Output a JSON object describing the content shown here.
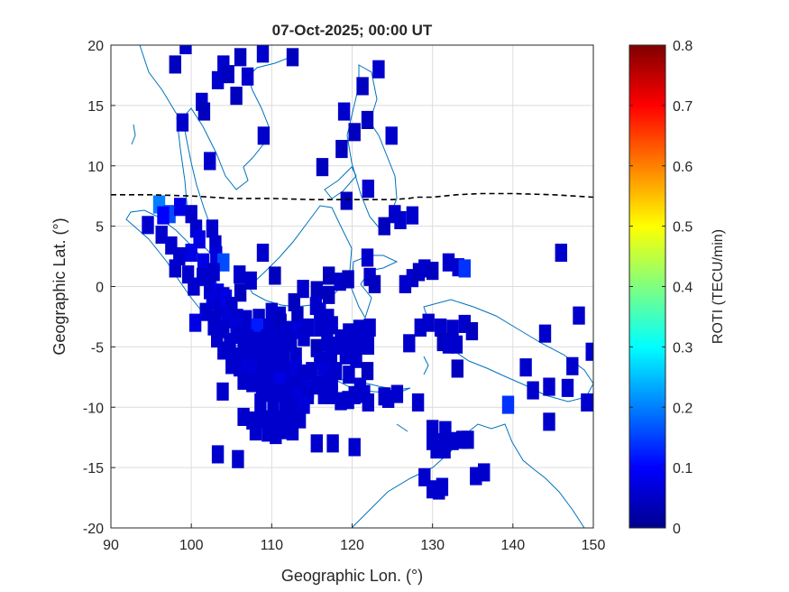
{
  "chart_data": {
    "type": "heatmap",
    "title": "07-Oct-2025; 00:00 UT",
    "xlabel": "Geographic Lon. (°)",
    "ylabel": "Geographic Lat. (°)",
    "xlim": [
      90,
      150
    ],
    "ylim": [
      -20,
      20
    ],
    "xticks": [
      "90",
      "100",
      "110",
      "120",
      "130",
      "140",
      "150"
    ],
    "yticks": [
      "20",
      "15",
      "10",
      "5",
      "0",
      "-5",
      "-10",
      "-15",
      "-20"
    ],
    "grid": true,
    "colorbar": {
      "label": "ROTI (TECU/min)",
      "range": [
        0,
        0.8
      ],
      "ticks": [
        "0.8",
        "0.7",
        "0.6",
        "0.5",
        "0.4",
        "0.3",
        "0.2",
        "0.1",
        "0"
      ],
      "colormap": "jet",
      "placement": "right"
    },
    "cell_size_deg": [
      1.5,
      1.5
    ],
    "cells": [
      [
        99.3,
        20.0,
        0.06
      ],
      [
        98.0,
        18.4,
        0.05
      ],
      [
        104.0,
        18.4,
        0.06
      ],
      [
        106.1,
        19.0,
        0.05
      ],
      [
        108.9,
        19.3,
        0.06
      ],
      [
        112.6,
        19.0,
        0.05
      ],
      [
        103.3,
        17.1,
        0.06
      ],
      [
        104.6,
        17.6,
        0.05
      ],
      [
        107.0,
        17.4,
        0.06
      ],
      [
        123.3,
        18.0,
        0.06
      ],
      [
        121.3,
        16.6,
        0.05
      ],
      [
        101.3,
        15.3,
        0.06
      ],
      [
        101.6,
        14.5,
        0.05
      ],
      [
        105.6,
        15.8,
        0.05
      ],
      [
        119.0,
        14.5,
        0.06
      ],
      [
        98.9,
        13.6,
        0.06
      ],
      [
        121.9,
        13.8,
        0.05
      ],
      [
        109.0,
        12.5,
        0.06
      ],
      [
        120.3,
        12.8,
        0.05
      ],
      [
        124.9,
        12.5,
        0.06
      ],
      [
        118.7,
        11.4,
        0.05
      ],
      [
        102.3,
        10.4,
        0.06
      ],
      [
        116.3,
        9.9,
        0.05
      ],
      [
        122.0,
        8.1,
        0.06
      ],
      [
        119.3,
        7.1,
        0.05
      ],
      [
        96.0,
        6.8,
        0.2
      ],
      [
        97.3,
        6.0,
        0.16
      ],
      [
        98.6,
        6.6,
        0.08
      ],
      [
        96.5,
        5.9,
        0.1
      ],
      [
        94.6,
        5.1,
        0.06
      ],
      [
        100.0,
        6.0,
        0.06
      ],
      [
        125.3,
        6.0,
        0.06
      ],
      [
        124.0,
        5.0,
        0.05
      ],
      [
        126.0,
        5.5,
        0.06
      ],
      [
        127.5,
        5.9,
        0.06
      ],
      [
        100.6,
        4.8,
        0.06
      ],
      [
        101.0,
        3.9,
        0.08
      ],
      [
        102.6,
        4.8,
        0.06
      ],
      [
        103.0,
        3.5,
        0.06
      ],
      [
        96.3,
        4.3,
        0.06
      ],
      [
        97.5,
        3.4,
        0.06
      ],
      [
        98.5,
        2.5,
        0.06
      ],
      [
        100.0,
        2.8,
        0.08
      ],
      [
        101.5,
        2.0,
        0.08
      ],
      [
        103.1,
        2.6,
        0.07
      ],
      [
        104.0,
        2.0,
        0.16
      ],
      [
        108.9,
        2.8,
        0.06
      ],
      [
        121.9,
        2.4,
        0.06
      ],
      [
        146.0,
        2.8,
        0.06
      ],
      [
        98.0,
        1.5,
        0.06
      ],
      [
        99.6,
        1.0,
        0.06
      ],
      [
        101.4,
        0.8,
        0.06
      ],
      [
        102.8,
        1.2,
        0.06
      ],
      [
        106.0,
        1.0,
        0.06
      ],
      [
        107.4,
        0.5,
        0.06
      ],
      [
        110.4,
        0.9,
        0.05
      ],
      [
        117.1,
        0.9,
        0.05
      ],
      [
        118.5,
        0.4,
        0.06
      ],
      [
        119.5,
        0.6,
        0.05
      ],
      [
        122.2,
        0.8,
        0.06
      ],
      [
        122.8,
        0.2,
        0.05
      ],
      [
        126.6,
        0.2,
        0.06
      ],
      [
        127.5,
        0.7,
        0.06
      ],
      [
        128.3,
        1.2,
        0.05
      ],
      [
        129.0,
        1.5,
        0.06
      ],
      [
        130.0,
        1.3,
        0.05
      ],
      [
        132.0,
        2.0,
        0.06
      ],
      [
        133.2,
        1.6,
        0.06
      ],
      [
        134.0,
        1.5,
        0.14
      ],
      [
        100.3,
        0.0,
        0.06
      ],
      [
        102.3,
        -0.3,
        0.06
      ],
      [
        103.3,
        -0.5,
        0.08
      ],
      [
        104.0,
        -0.8,
        0.06
      ],
      [
        106.1,
        -0.5,
        0.05
      ],
      [
        113.9,
        -0.2,
        0.06
      ],
      [
        115.6,
        -0.3,
        0.05
      ],
      [
        117.1,
        -0.7,
        0.05
      ],
      [
        102.6,
        -1.2,
        0.07
      ],
      [
        103.6,
        -1.8,
        0.06
      ],
      [
        104.3,
        -1.0,
        0.08
      ],
      [
        105.0,
        -1.6,
        0.06
      ],
      [
        112.8,
        -1.3,
        0.05
      ],
      [
        115.5,
        -1.6,
        0.06
      ],
      [
        101.8,
        -2.1,
        0.06
      ],
      [
        103.0,
        -2.7,
        0.06
      ],
      [
        104.5,
        -2.7,
        0.07
      ],
      [
        105.7,
        -2.6,
        0.06
      ],
      [
        106.8,
        -2.7,
        0.06
      ],
      [
        108.4,
        -2.6,
        0.06
      ],
      [
        110.0,
        -2.1,
        0.06
      ],
      [
        111.0,
        -2.4,
        0.06
      ],
      [
        113.2,
        -2.4,
        0.05
      ],
      [
        116.0,
        -2.1,
        0.06
      ],
      [
        117.0,
        -2.6,
        0.06
      ],
      [
        100.5,
        -3.0,
        0.08
      ],
      [
        102.8,
        -3.3,
        0.06
      ],
      [
        104.0,
        -3.5,
        0.06
      ],
      [
        105.6,
        -3.2,
        0.07
      ],
      [
        107.3,
        -3.6,
        0.06
      ],
      [
        108.2,
        -3.4,
        0.12
      ],
      [
        109.7,
        -3.4,
        0.06
      ],
      [
        111.1,
        -3.0,
        0.05
      ],
      [
        112.0,
        -3.6,
        0.06
      ],
      [
        113.2,
        -3.6,
        0.07
      ],
      [
        114.5,
        -3.4,
        0.06
      ],
      [
        116.0,
        -3.4,
        0.06
      ],
      [
        117.5,
        -3.2,
        0.06
      ],
      [
        118.6,
        -4.3,
        0.06
      ],
      [
        119.6,
        -3.8,
        0.06
      ],
      [
        120.4,
        -4.0,
        0.06
      ],
      [
        120.9,
        -3.5,
        0.06
      ],
      [
        122.2,
        -3.4,
        0.06
      ],
      [
        128.5,
        -3.4,
        0.06
      ],
      [
        129.5,
        -3.0,
        0.06
      ],
      [
        131.0,
        -3.4,
        0.06
      ],
      [
        132.5,
        -3.5,
        0.06
      ],
      [
        134.0,
        -3.1,
        0.06
      ],
      [
        134.9,
        -3.7,
        0.05
      ],
      [
        144.0,
        -3.9,
        0.06
      ],
      [
        148.2,
        -2.4,
        0.06
      ],
      [
        103.2,
        -4.3,
        0.06
      ],
      [
        104.8,
        -4.6,
        0.06
      ],
      [
        106.1,
        -4.0,
        0.06
      ],
      [
        107.0,
        -4.3,
        0.06
      ],
      [
        108.0,
        -4.5,
        0.06
      ],
      [
        109.4,
        -4.3,
        0.06
      ],
      [
        110.2,
        -4.6,
        0.06
      ],
      [
        111.2,
        -4.2,
        0.06
      ],
      [
        112.4,
        -4.6,
        0.06
      ],
      [
        114.0,
        -4.2,
        0.06
      ],
      [
        115.6,
        -5.1,
        0.05
      ],
      [
        116.9,
        -4.6,
        0.06
      ],
      [
        118.0,
        -4.9,
        0.06
      ],
      [
        119.0,
        -4.6,
        0.06
      ],
      [
        119.9,
        -4.9,
        0.06
      ],
      [
        121.0,
        -4.7,
        0.06
      ],
      [
        122.0,
        -4.9,
        0.06
      ],
      [
        131.3,
        -4.6,
        0.05
      ],
      [
        132.0,
        -4.8,
        0.06
      ],
      [
        133.0,
        -4.8,
        0.06
      ],
      [
        127.1,
        -4.7,
        0.06
      ],
      [
        149.8,
        -5.4,
        0.06
      ],
      [
        104.0,
        -5.3,
        0.06
      ],
      [
        105.5,
        -5.8,
        0.06
      ],
      [
        106.5,
        -5.5,
        0.06
      ],
      [
        107.6,
        -5.6,
        0.06
      ],
      [
        108.5,
        -5.6,
        0.06
      ],
      [
        109.5,
        -5.5,
        0.06
      ],
      [
        110.5,
        -5.5,
        0.06
      ],
      [
        111.5,
        -5.6,
        0.06
      ],
      [
        113.0,
        -5.8,
        0.06
      ],
      [
        116.0,
        -6.1,
        0.06
      ],
      [
        117.4,
        -5.7,
        0.06
      ],
      [
        119.2,
        -5.7,
        0.06
      ],
      [
        120.5,
        -6.0,
        0.06
      ],
      [
        105.0,
        -6.5,
        0.06
      ],
      [
        106.0,
        -6.7,
        0.06
      ],
      [
        107.0,
        -6.8,
        0.07
      ],
      [
        108.0,
        -7.0,
        0.07
      ],
      [
        109.0,
        -6.6,
        0.06
      ],
      [
        110.0,
        -6.8,
        0.06
      ],
      [
        111.0,
        -6.9,
        0.06
      ],
      [
        112.0,
        -7.0,
        0.06
      ],
      [
        113.0,
        -6.8,
        0.07
      ],
      [
        114.0,
        -7.2,
        0.06
      ],
      [
        115.0,
        -7.0,
        0.06
      ],
      [
        116.5,
        -7.1,
        0.07
      ],
      [
        118.0,
        -7.0,
        0.06
      ],
      [
        119.6,
        -7.3,
        0.06
      ],
      [
        121.9,
        -7.0,
        0.05
      ],
      [
        133.1,
        -6.8,
        0.05
      ],
      [
        141.6,
        -6.7,
        0.06
      ],
      [
        147.4,
        -6.6,
        0.06
      ],
      [
        106.5,
        -7.8,
        0.06
      ],
      [
        107.6,
        -8.0,
        0.06
      ],
      [
        108.8,
        -7.9,
        0.06
      ],
      [
        110.0,
        -8.0,
        0.06
      ],
      [
        111.0,
        -7.8,
        0.08
      ],
      [
        112.5,
        -8.2,
        0.06
      ],
      [
        113.5,
        -8.0,
        0.06
      ],
      [
        114.5,
        -8.5,
        0.07
      ],
      [
        115.6,
        -8.2,
        0.06
      ],
      [
        116.5,
        -8.3,
        0.06
      ],
      [
        117.5,
        -7.8,
        0.06
      ],
      [
        121.0,
        -8.3,
        0.06
      ],
      [
        144.5,
        -8.3,
        0.06
      ],
      [
        108.8,
        -8.6,
        0.06
      ],
      [
        110.0,
        -8.8,
        0.06
      ],
      [
        111.3,
        -8.8,
        0.06
      ],
      [
        112.0,
        -9.0,
        0.06
      ],
      [
        113.3,
        -9.2,
        0.07
      ],
      [
        114.5,
        -9.0,
        0.06
      ],
      [
        116.5,
        -9.0,
        0.06
      ],
      [
        117.5,
        -9.0,
        0.06
      ],
      [
        120.3,
        -9.0,
        0.06
      ],
      [
        121.5,
        -8.9,
        0.06
      ],
      [
        124.0,
        -9.1,
        0.06
      ],
      [
        125.6,
        -8.9,
        0.06
      ],
      [
        142.5,
        -8.6,
        0.06
      ],
      [
        103.9,
        -8.7,
        0.06
      ],
      [
        146.8,
        -8.4,
        0.06
      ],
      [
        108.6,
        -9.6,
        0.06
      ],
      [
        110.2,
        -9.9,
        0.06
      ],
      [
        111.7,
        -10.0,
        0.06
      ],
      [
        113.0,
        -10.0,
        0.06
      ],
      [
        114.0,
        -9.8,
        0.07
      ],
      [
        118.6,
        -9.5,
        0.06
      ],
      [
        119.5,
        -9.4,
        0.06
      ],
      [
        122.0,
        -9.6,
        0.06
      ],
      [
        124.5,
        -9.3,
        0.06
      ],
      [
        128.2,
        -9.6,
        0.06
      ],
      [
        139.4,
        -9.8,
        0.14
      ],
      [
        149.2,
        -9.6,
        0.06
      ],
      [
        106.5,
        -10.8,
        0.06
      ],
      [
        107.6,
        -11.1,
        0.06
      ],
      [
        109.0,
        -11.0,
        0.06
      ],
      [
        110.3,
        -11.0,
        0.06
      ],
      [
        111.4,
        -11.2,
        0.06
      ],
      [
        112.5,
        -11.2,
        0.06
      ],
      [
        113.5,
        -11.0,
        0.06
      ],
      [
        144.5,
        -11.2,
        0.06
      ],
      [
        108.0,
        -12.0,
        0.06
      ],
      [
        109.5,
        -12.1,
        0.06
      ],
      [
        110.5,
        -12.3,
        0.06
      ],
      [
        111.5,
        -11.9,
        0.06
      ],
      [
        112.6,
        -12.0,
        0.06
      ],
      [
        130.0,
        -11.8,
        0.06
      ],
      [
        131.6,
        -11.9,
        0.06
      ],
      [
        130.0,
        -12.8,
        0.06
      ],
      [
        131.5,
        -12.9,
        0.06
      ],
      [
        132.5,
        -12.8,
        0.06
      ],
      [
        133.7,
        -12.7,
        0.06
      ],
      [
        134.4,
        -12.7,
        0.06
      ],
      [
        115.6,
        -13.0,
        0.06
      ],
      [
        117.6,
        -13.0,
        0.06
      ],
      [
        120.3,
        -13.3,
        0.06
      ],
      [
        130.5,
        -13.5,
        0.06
      ],
      [
        131.5,
        -13.5,
        0.06
      ],
      [
        103.3,
        -13.9,
        0.06
      ],
      [
        105.8,
        -14.3,
        0.06
      ],
      [
        129.0,
        -15.8,
        0.06
      ],
      [
        135.4,
        -15.7,
        0.06
      ],
      [
        136.4,
        -15.4,
        0.06
      ],
      [
        130.0,
        -16.8,
        0.06
      ],
      [
        130.8,
        -16.9,
        0.06
      ],
      [
        131.2,
        -16.6,
        0.06
      ]
    ],
    "boundary_line": {
      "name": "",
      "style": "dashed",
      "lon": [
        90,
        95,
        100,
        105,
        110,
        115,
        120,
        125,
        127,
        128,
        130,
        133,
        136,
        140,
        145,
        150
      ],
      "lat": [
        7.6,
        7.6,
        7.5,
        7.3,
        7.3,
        7.2,
        7.2,
        7.2,
        7.3,
        7.4,
        7.4,
        7.6,
        7.7,
        7.7,
        7.6,
        7.4
      ]
    }
  }
}
